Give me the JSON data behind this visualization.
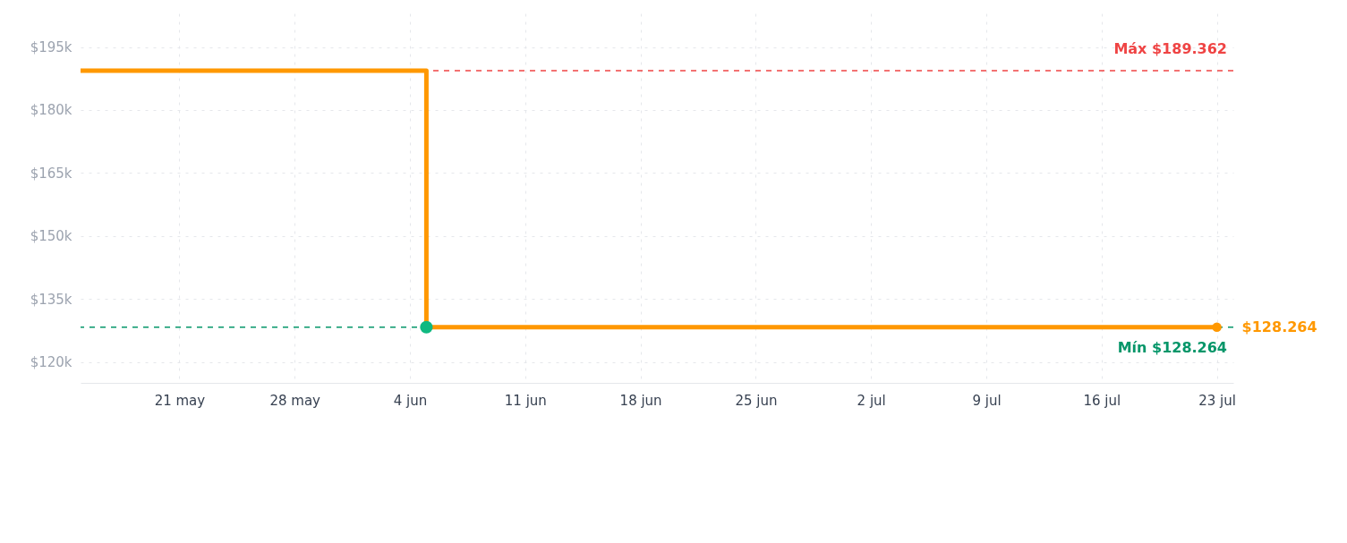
{
  "chart_data": {
    "type": "step",
    "series": [
      {
        "color": "#ff9800",
        "x": [
          "--05-15",
          "--06-05",
          "--07-23"
        ],
        "values": [
          189362,
          128264,
          128264
        ],
        "marker": "none"
      },
      {
        "type": "scatter",
        "color": "#10b981",
        "x": [
          "--06-05"
        ],
        "values": [
          128264
        ],
        "marker": "circle"
      }
    ],
    "xlim": [
      "--05-15",
      "--07-24"
    ],
    "xticks": [
      {
        "value": "--05-21",
        "label": "21 may"
      },
      {
        "value": "--05-28",
        "label": "28 may"
      },
      {
        "value": "--06-04",
        "label": "4 jun"
      },
      {
        "value": "--06-11",
        "label": "11 jun"
      },
      {
        "value": "--06-18",
        "label": "18 jun"
      },
      {
        "value": "--06-25",
        "label": "25 jun"
      },
      {
        "value": "--07-02",
        "label": "2 jul"
      },
      {
        "value": "--07-09",
        "label": "9 jul"
      },
      {
        "value": "--07-16",
        "label": "16 jul"
      },
      {
        "value": "--07-23",
        "label": "23 jul"
      }
    ],
    "ylim": [
      115000,
      203000
    ],
    "yticks": [
      {
        "value": 120000,
        "label": "$120k"
      },
      {
        "value": 135000,
        "label": "$135k"
      },
      {
        "value": 150000,
        "label": "$150k"
      },
      {
        "value": 165000,
        "label": "$165k"
      },
      {
        "value": 180000,
        "label": "$180k"
      },
      {
        "value": 195000,
        "label": "$195k"
      }
    ],
    "ref_lines": [
      {
        "axis": "y",
        "value": 189362,
        "label": "Máx $189.362",
        "color": "#ef4444",
        "line_style": "dashed"
      },
      {
        "axis": "y",
        "value": 128264,
        "label": "Mín $128.264",
        "color": "#059669",
        "line_style": "dashed"
      }
    ],
    "annotations": [
      {
        "text": "$128.264",
        "x": "--07-23",
        "y": 128264
      }
    ],
    "grid": true,
    "line_style": "solid"
  }
}
